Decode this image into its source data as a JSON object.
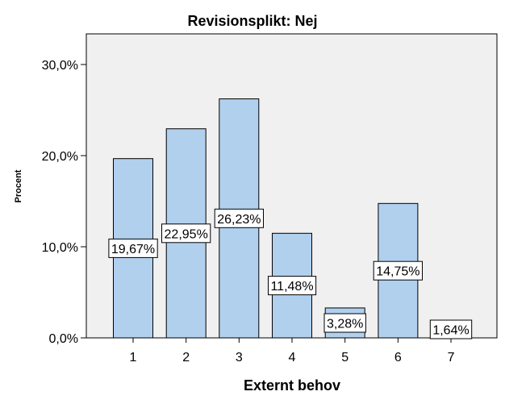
{
  "chart_data": {
    "type": "bar",
    "title": "Revisionsplikt: Nej",
    "xlabel": "Externt behov",
    "ylabel": "Procent",
    "categories": [
      "1",
      "2",
      "3",
      "4",
      "5",
      "6",
      "7"
    ],
    "values": [
      19.67,
      22.95,
      26.23,
      11.48,
      3.28,
      14.75,
      1.64
    ],
    "data_labels": [
      "19,67%",
      "22,95%",
      "26,23%",
      "11,48%",
      "3,28%",
      "14,75%",
      "1,64%"
    ],
    "ylim": [
      0,
      30
    ],
    "yticks": [
      0,
      10,
      20,
      30
    ],
    "ytick_labels": [
      "0,0%",
      "10,0%",
      "20,0%",
      "30,0%"
    ],
    "grid": false,
    "colors": {
      "bar_fill": "#b0d0ee",
      "bar_stroke": "#000000",
      "plot_background": "#f0f0f0"
    }
  }
}
